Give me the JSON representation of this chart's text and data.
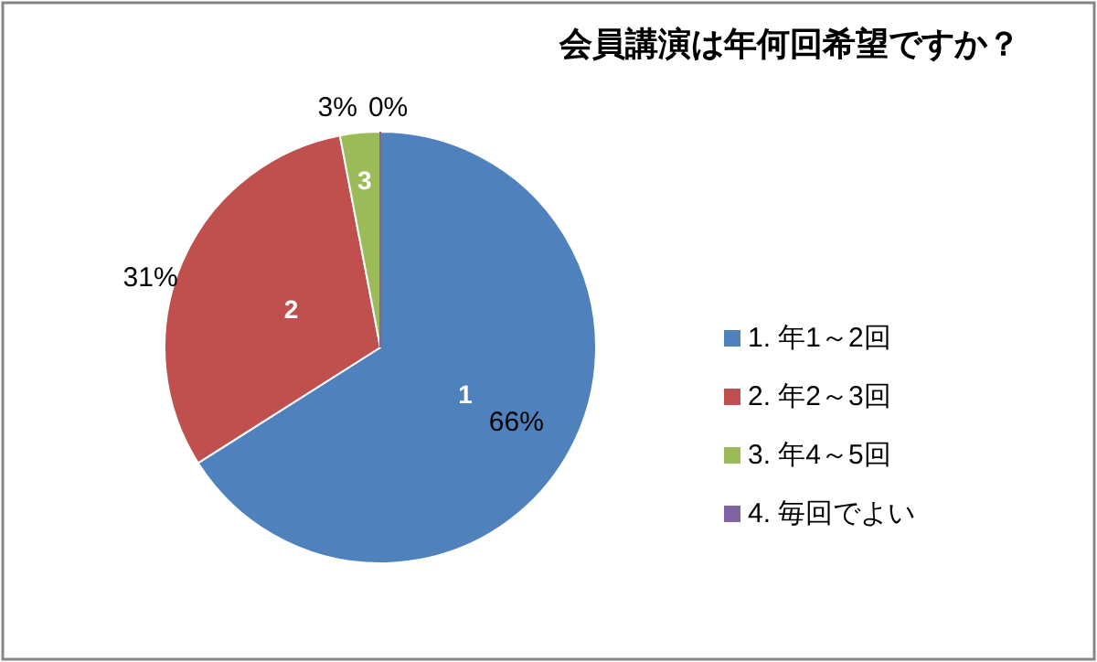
{
  "chart_data": {
    "type": "pie",
    "title": "会員講演は年何回希望ですか？",
    "categories": [
      "1. 年1～2回",
      "2. 年2～3回",
      "3. 年4～5回",
      "4. 毎回でよい"
    ],
    "values": [
      66,
      31,
      3,
      0
    ],
    "colors": [
      "#4f81bd",
      "#c0504d",
      "#9bbb59",
      "#8064a2"
    ],
    "value_labels": [
      "66%",
      "31%",
      "3%",
      "0%"
    ],
    "annotations": [
      {
        "text": "1",
        "x": "1. 年1～2回"
      },
      {
        "text": "2",
        "x": "2. 年2～3回"
      },
      {
        "text": "3",
        "x": "3. 年4～5回"
      }
    ],
    "legend": "right"
  }
}
